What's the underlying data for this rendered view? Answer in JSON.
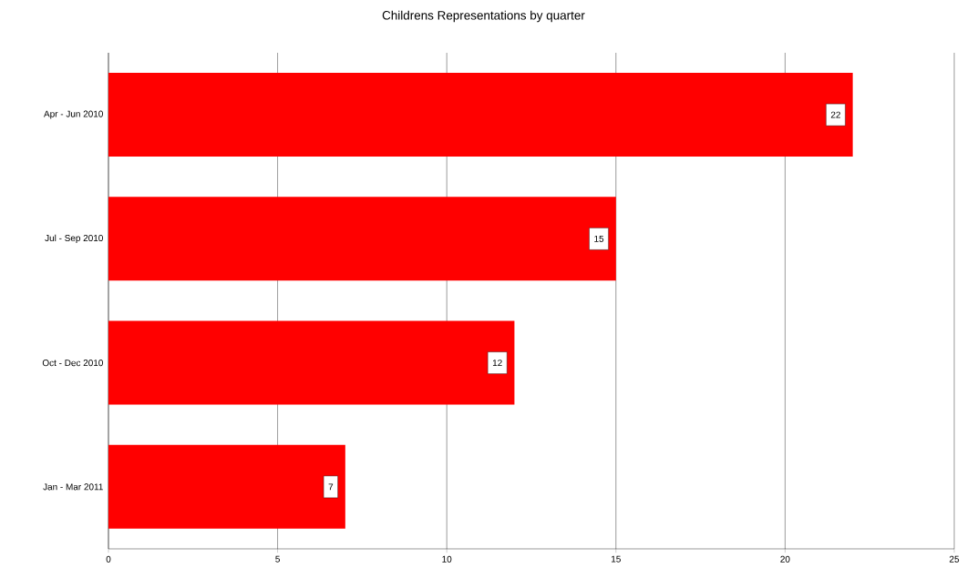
{
  "chart_data": {
    "type": "bar",
    "orientation": "horizontal",
    "title": "Childrens Representations by quarter",
    "categories": [
      "Apr - Jun 2010",
      "Jul - Sep 2010",
      "Oct - Dec 2010",
      "Jan - Mar 2011"
    ],
    "values": [
      22,
      15,
      12,
      7
    ],
    "color": "#ff0000",
    "xlim": [
      0,
      25
    ],
    "xticks": [
      0,
      5,
      10,
      15,
      20,
      25
    ],
    "grid": "x",
    "data_labels": true
  }
}
